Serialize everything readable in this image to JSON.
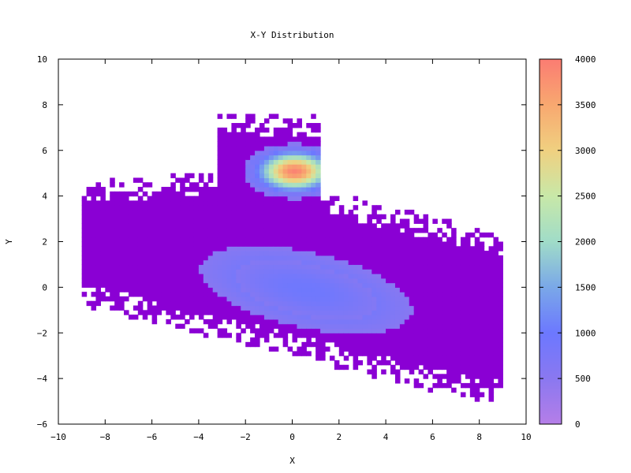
{
  "chart_data": {
    "type": "heatmap",
    "title": "X-Y Distribution",
    "xlabel": "X",
    "ylabel": "Y",
    "xlim": [
      -10,
      10
    ],
    "ylim": [
      -6,
      10
    ],
    "x_ticks": [
      "−10",
      "−8",
      "−6",
      "−4",
      "−2",
      "0",
      "2",
      "4",
      "6",
      "8",
      "10"
    ],
    "y_ticks": [
      "−6",
      "−4",
      "−2",
      "0",
      "2",
      "4",
      "6",
      "8",
      "10"
    ],
    "grid": false,
    "colorbar": {
      "range": [
        0,
        4000
      ],
      "ticks": [
        "0",
        "500",
        "1000",
        "1500",
        "2000",
        "2500",
        "3000",
        "3500",
        "4000"
      ],
      "colors": [
        "#b57ee8",
        "#8a78f0",
        "#6c78ff",
        "#7aa8e8",
        "#a0dcc8",
        "#c8e8a8",
        "#f0d080",
        "#f8a870",
        "#fb7c72"
      ]
    },
    "data_extent": {
      "x": [
        -9,
        9
      ],
      "y": [
        -5,
        7.5
      ]
    },
    "components": [
      {
        "name": "peak",
        "center_x": 0,
        "center_y": 5,
        "sigma_x": 1.0,
        "sigma_y": 0.55,
        "max_count": 3900
      },
      {
        "name": "band",
        "center_x": 0.5,
        "center_y": -0.2,
        "sigma_along": 3.2,
        "sigma_across": 1.2,
        "slope": -0.2,
        "max_count": 950
      }
    ],
    "low_count_color": "#8a00d4"
  }
}
